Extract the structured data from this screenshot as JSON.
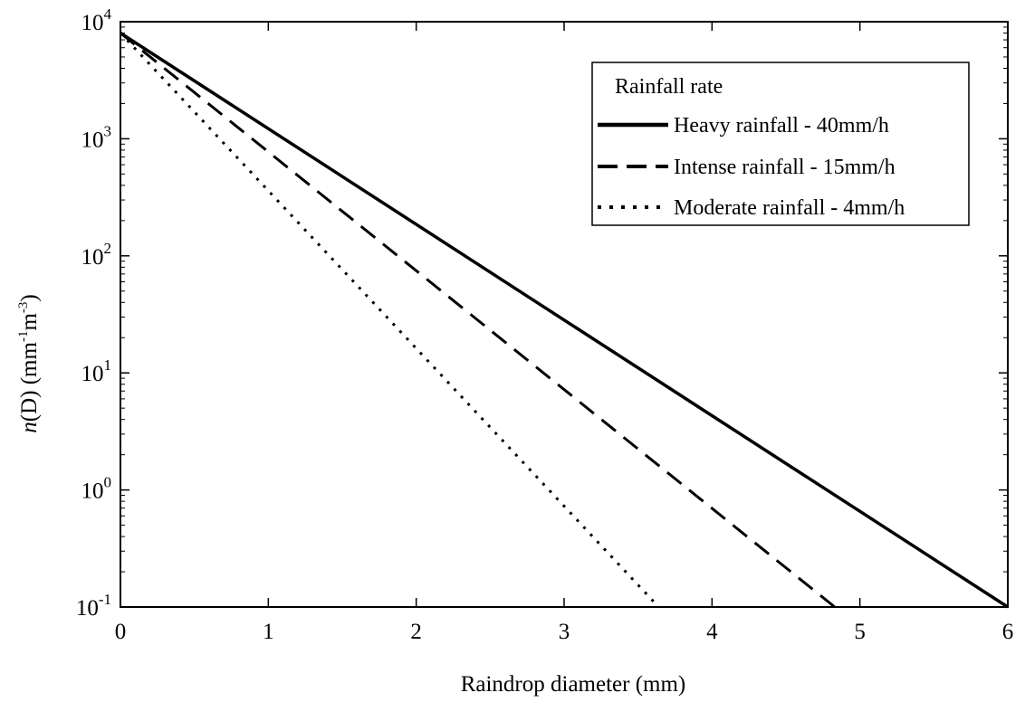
{
  "chart_data": {
    "type": "line",
    "xlabel": "Raindrop diameter (mm)",
    "ylabel": {
      "var": "n",
      "arg": "(D)",
      "unit_text": "(mm",
      "exp1": "-1",
      "mid": "m",
      "exp2": "-3",
      "close": ")"
    },
    "xlim": [
      0,
      6
    ],
    "ylim": [
      0.1,
      10000
    ],
    "yscale": "log",
    "x_ticks": [
      0,
      1,
      2,
      3,
      4,
      5,
      6
    ],
    "x_tick_labels": [
      "0",
      "1",
      "2",
      "3",
      "4",
      "5",
      "6"
    ],
    "y_ticks": [
      {
        "value": 10000,
        "base": "10",
        "exp": "4"
      },
      {
        "value": 1000,
        "base": "10",
        "exp": "3"
      },
      {
        "value": 100,
        "base": "10",
        "exp": "2"
      },
      {
        "value": 10,
        "base": "10",
        "exp": "1"
      },
      {
        "value": 1,
        "base": "10",
        "exp": "0"
      },
      {
        "value": 0.1,
        "base": "10",
        "exp": "-1"
      }
    ],
    "grid": false,
    "legend": {
      "title": "Rainfall rate",
      "position": "top-right"
    },
    "series": [
      {
        "name": "Heavy rainfall - 40mm/h",
        "style": "solid",
        "x": [
          0,
          6
        ],
        "y": [
          8000,
          0.1
        ]
      },
      {
        "name": "Intense rainfall - 15mm/h",
        "style": "dashed",
        "x": [
          0,
          4.83
        ],
        "y": [
          8000,
          0.1
        ]
      },
      {
        "name": "Moderate rainfall - 4mm/h",
        "style": "dotted",
        "x": [
          0,
          3.64
        ],
        "y": [
          8000,
          0.1
        ]
      }
    ],
    "colors": {
      "line": "#000000",
      "axes": "#000000",
      "background": "#ffffff"
    }
  }
}
